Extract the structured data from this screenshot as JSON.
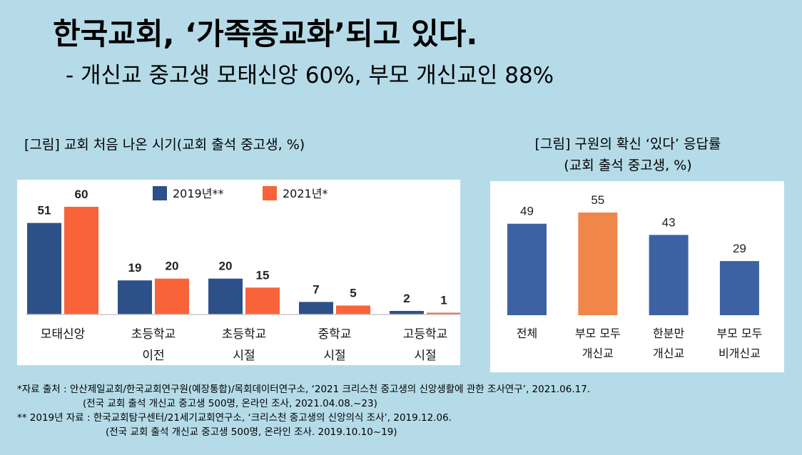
{
  "title": "한국교회, ‘가족종교화’되고 있다.",
  "subtitle": "- 개신교 중고생 모태신앙 60%, 부모 개신교인 88%",
  "chart_data": [
    {
      "type": "bar",
      "title": "[그림] 교회 처음 나온 시기(교회 출석 중고생, %)",
      "categories": [
        [
          "모태신앙"
        ],
        [
          "초등학교",
          "이전"
        ],
        [
          "초등학교",
          "시절"
        ],
        [
          "중학교",
          "시절"
        ],
        [
          "고등학교",
          "시절"
        ]
      ],
      "series": [
        {
          "name": "2019년**",
          "values": [
            51,
            19,
            20,
            7,
            2
          ],
          "color": "#2e5089"
        },
        {
          "name": "2021년*",
          "values": [
            60,
            20,
            15,
            5,
            1
          ],
          "color": "#f9633a"
        }
      ],
      "ylim": [
        0,
        70
      ],
      "legend": "top",
      "grid": false
    },
    {
      "type": "bar",
      "title": "[그림] 구원의 확신 ‘있다’ 응답률",
      "subtitle": "(교회 출석 중고생, %)",
      "categories": [
        [
          "전체"
        ],
        [
          "부모 모두",
          "개신교"
        ],
        [
          "한분만",
          "개신교"
        ],
        [
          "부모 모두",
          "비개신교"
        ]
      ],
      "values": [
        49,
        55,
        43,
        29
      ],
      "colors": [
        "#3d62a3",
        "#f0864a",
        "#3d62a3",
        "#3d62a3"
      ],
      "ylim": [
        0,
        65
      ],
      "grid": false
    }
  ],
  "footnotes": [
    "*자료 출처 : 안산제일교회/한국교회연구원(예장통합)/목회데이터연구소, ‘2021 크리스천 중고생의 신앙생활에 관한 조사연구’, 2021.06.17.",
    "(전국 교회 출석 개신교 중고생 500명, 온라인 조사, 2021.04.08.~23)",
    "** 2019년 자료 : 한국교회탐구센터/21세기교회연구소, ‘크리스천 중고생의 신앙의식 조사’, 2019.12.06.",
    "(전국 교회 출석 개신교 중고생 500명, 온라인 조사. 2019.10.10~19)"
  ]
}
